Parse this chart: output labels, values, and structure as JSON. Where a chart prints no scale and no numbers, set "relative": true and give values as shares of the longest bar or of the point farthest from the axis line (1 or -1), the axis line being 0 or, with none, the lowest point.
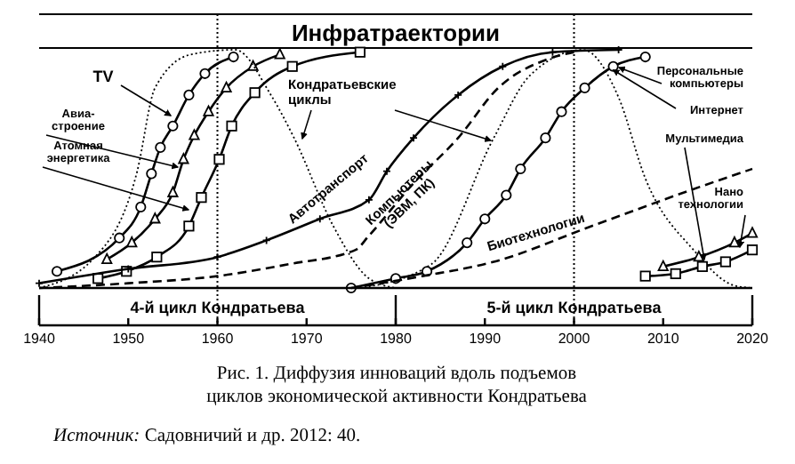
{
  "chart_data": {
    "type": "line",
    "relative": true,
    "title": "Инфратраектории",
    "xlim": [
      1940,
      2020
    ],
    "xticks": [
      1940,
      1950,
      1960,
      1970,
      1980,
      1990,
      2000,
      2010,
      2020
    ],
    "tick_labels": "x",
    "series": [
      {
        "name": "TV",
        "color": "#000000",
        "marker": "circle",
        "line_style": "solid",
        "x": [
          1942,
          1949,
          1951.4,
          1952.6,
          1953.6,
          1955,
          1956.8,
          1958.6,
          1961.8
        ],
        "values": [
          0.07,
          0.21,
          0.34,
          0.48,
          0.59,
          0.68,
          0.81,
          0.9,
          0.97
        ]
      },
      {
        "name": "Авиа-строение",
        "color": "#000000",
        "marker": "triangle",
        "line_style": "solid",
        "x": [
          1947.6,
          1950.4,
          1953,
          1955,
          1956.2,
          1957.4,
          1959,
          1961,
          1964,
          1967
        ],
        "values": [
          0.12,
          0.19,
          0.29,
          0.4,
          0.54,
          0.64,
          0.74,
          0.84,
          0.93,
          0.98
        ]
      },
      {
        "name": "Атомная энергетика",
        "color": "#000000",
        "marker": "square",
        "line_style": "solid",
        "x": [
          1946.6,
          1949.8,
          1953.2,
          1956.8,
          1958.2,
          1960.2,
          1961.6,
          1964.2,
          1968.4,
          1976
        ],
        "values": [
          0.04,
          0.07,
          0.13,
          0.26,
          0.38,
          0.54,
          0.68,
          0.82,
          0.93,
          0.99
        ]
      },
      {
        "name": "Кондратьевские циклы",
        "color": "#000000",
        "marker": "none",
        "line_style": "dotted",
        "x": [
          1940,
          1946,
          1951,
          1953,
          1957,
          1962,
          1966,
          1968.6,
          1973,
          1977,
          1980
        ],
        "values": [
          0,
          0.12,
          0.49,
          0.84,
          0.98,
          1,
          0.81,
          0.63,
          0.26,
          0.04,
          0
        ]
      },
      {
        "color": "#000000",
        "marker": "none",
        "line_style": "dotted",
        "x": [
          1976,
          1984,
          1991,
          1995,
          2001,
          2005,
          2008,
          2013.4,
          2018,
          2020
        ],
        "values": [
          0,
          0.1,
          0.63,
          0.89,
          1,
          0.8,
          0.46,
          0.16,
          0.01,
          0
        ]
      },
      {
        "name": "Автотранспорт",
        "color": "#000000",
        "marker": "cross",
        "line_style": "solid",
        "x": [
          1940,
          1950,
          1960,
          1965.5,
          1971.5,
          1977,
          1979,
          1982,
          1987,
          1992,
          1997.6,
          2005
        ],
        "values": [
          0.02,
          0.08,
          0.13,
          0.2,
          0.29,
          0.37,
          0.49,
          0.63,
          0.81,
          0.93,
          0.99,
          1
        ]
      },
      {
        "name": "Компьютеры (ЭВМ, ПК)",
        "color": "#000000",
        "marker": "none",
        "line_style": "dashed",
        "x": [
          1940,
          1950,
          1960,
          1968,
          1975.5,
          1977,
          1982,
          1987,
          1991.5,
          1997,
          2000
        ],
        "values": [
          0,
          0.02,
          0.05,
          0.1,
          0.16,
          0.22,
          0.44,
          0.63,
          0.84,
          0.96,
          0.99
        ]
      },
      {
        "name": "Персональные компьютеры",
        "color": "#000000",
        "marker": "circle",
        "line_style": "solid",
        "x": [
          1975,
          1980,
          1983.5,
          1988,
          1990,
          1992.4,
          1994,
          1996.8,
          1998.6,
          2001.2,
          2004.4,
          2008
        ],
        "values": [
          0,
          0.04,
          0.07,
          0.19,
          0.29,
          0.39,
          0.5,
          0.63,
          0.74,
          0.84,
          0.93,
          0.97
        ]
      },
      {
        "name": "Биотехнологии",
        "color": "#000000",
        "marker": "none",
        "line_style": "dashed",
        "x": [
          1975,
          1983,
          1991,
          2002,
          2013,
          2020
        ],
        "values": [
          0,
          0.05,
          0.11,
          0.26,
          0.41,
          0.5
        ]
      },
      {
        "name": "Мультимедиа",
        "color": "#000000",
        "marker": "triangle",
        "line_style": "solid",
        "x": [
          2010,
          2014,
          2018,
          2020
        ],
        "values": [
          0.09,
          0.13,
          0.19,
          0.23
        ]
      },
      {
        "name": "Нано технологии",
        "color": "#000000",
        "marker": "square",
        "line_style": "solid",
        "x": [
          2008,
          2011.4,
          2014.4,
          2017,
          2020
        ],
        "values": [
          0.05,
          0.06,
          0.09,
          0.11,
          0.16
        ]
      }
    ],
    "ref_lines": [
      {
        "axis": "x",
        "value": 1960,
        "line_style": "dotted"
      },
      {
        "axis": "x",
        "value": 2000,
        "line_style": "dotted"
      }
    ],
    "annotations": [
      "4-й цикл Кондратьева",
      "5-й цикл Кондратьева",
      "Рис. 1. Диффузия инноваций вдоль подъемов циклов экономической активности Кондратьева",
      {
        "text": "Интернет",
        "x": 2004,
        "y": 0.93
      },
      "Источник: Садовничий и др. 2012: 40."
    ]
  }
}
